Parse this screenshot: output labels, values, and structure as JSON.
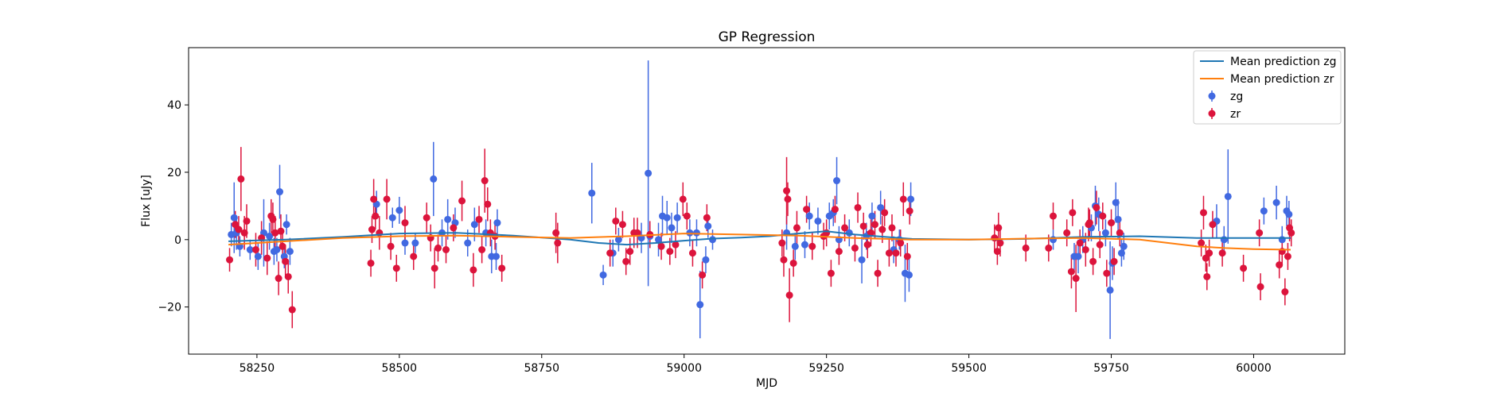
{
  "chart_data": {
    "type": "scatter",
    "title": "GP Regression",
    "xlabel": "MJD",
    "ylabel": "Flux [uJy]",
    "xlim": [
      58130,
      60160
    ],
    "ylim": [
      -34,
      57
    ],
    "xticks": [
      58250,
      58500,
      58750,
      59000,
      59250,
      59500,
      59750,
      60000
    ],
    "yticks": [
      -20,
      0,
      20,
      40
    ],
    "grid": false,
    "legend_position": "top-right",
    "legend": [
      "Mean prediction zg",
      "Mean prediction zr",
      "zg",
      "zr"
    ],
    "series": [
      {
        "name": "zg",
        "kind": "errorbar",
        "color": "#4169e1",
        "points": [
          [
            58205,
            1.5,
            3.5
          ],
          [
            58210,
            6.5,
            10.5
          ],
          [
            58214,
            2.0,
            5.0
          ],
          [
            58220,
            -2.0,
            3.0
          ],
          [
            58238,
            -3.0,
            3.0
          ],
          [
            58252,
            -5.0,
            4.0
          ],
          [
            58262,
            2.0,
            10.0
          ],
          [
            58272,
            1.0,
            4.0
          ],
          [
            58280,
            -3.5,
            4.0
          ],
          [
            58285,
            -3.0,
            3.5
          ],
          [
            58290,
            14.2,
            8.0
          ],
          [
            58298,
            -5.0,
            3.5
          ],
          [
            58302,
            4.5,
            3.0
          ],
          [
            58308,
            -3.5,
            4.0
          ],
          [
            58460,
            10.5,
            4.0
          ],
          [
            58488,
            6.5,
            3.0
          ],
          [
            58500,
            8.7,
            4.0
          ],
          [
            58510,
            -1.0,
            3.5
          ],
          [
            58528,
            -1.0,
            3.0
          ],
          [
            58560,
            18.0,
            11.0
          ],
          [
            58575,
            2.0,
            4.0
          ],
          [
            58585,
            6.0,
            6.0
          ],
          [
            58598,
            5.0,
            4.5
          ],
          [
            58620,
            -1.0,
            4.0
          ],
          [
            58632,
            4.5,
            5.0
          ],
          [
            58652,
            2.0,
            4.0
          ],
          [
            58662,
            -5.0,
            5.0
          ],
          [
            58670,
            -5.0,
            4.0
          ],
          [
            58672,
            5.0,
            4.0
          ],
          [
            58838,
            13.8,
            9.0
          ],
          [
            58858,
            -10.5,
            3.0
          ],
          [
            58875,
            -4.0,
            4.0
          ],
          [
            58885,
            0.0,
            3.5
          ],
          [
            58925,
            0.5,
            4.5
          ],
          [
            58937,
            19.7,
            33.5
          ],
          [
            58940,
            1.0,
            3.5
          ],
          [
            58955,
            0.0,
            5.0
          ],
          [
            58962,
            7.0,
            6.0
          ],
          [
            58970,
            6.5,
            5.0
          ],
          [
            58978,
            3.5,
            4.5
          ],
          [
            58988,
            6.5,
            4.5
          ],
          [
            59010,
            2.0,
            4.0
          ],
          [
            59022,
            2.0,
            4.0
          ],
          [
            59028,
            -19.3,
            10.0
          ],
          [
            59038,
            -6.0,
            4.0
          ],
          [
            59042,
            4.0,
            3.5
          ],
          [
            59050,
            0.0,
            3.0
          ],
          [
            59180,
            2.0,
            5.0
          ],
          [
            59195,
            -2.0,
            4.0
          ],
          [
            59212,
            -1.5,
            4.0
          ],
          [
            59220,
            7.0,
            4.0
          ],
          [
            59235,
            5.5,
            4.0
          ],
          [
            59255,
            7.0,
            4.0
          ],
          [
            59262,
            8.0,
            4.0
          ],
          [
            59268,
            17.5,
            7.0
          ],
          [
            59272,
            0.0,
            4.0
          ],
          [
            59290,
            2.0,
            4.0
          ],
          [
            59312,
            -6.0,
            7.0
          ],
          [
            59320,
            1.0,
            4.0
          ],
          [
            59330,
            7.0,
            4.0
          ],
          [
            59345,
            9.5,
            5.0
          ],
          [
            59368,
            -3.0,
            4.0
          ],
          [
            59378,
            0.0,
            3.0
          ],
          [
            59388,
            -10.0,
            8.5
          ],
          [
            59395,
            -10.5,
            5.0
          ],
          [
            59398,
            12.0,
            5.0
          ],
          [
            59648,
            0.0,
            3.0
          ],
          [
            59685,
            -5.0,
            4.0
          ],
          [
            59692,
            -5.0,
            5.0
          ],
          [
            59700,
            0.0,
            4.0
          ],
          [
            59715,
            3.5,
            4.0
          ],
          [
            59722,
            10.0,
            6.0
          ],
          [
            59728,
            7.5,
            5.0
          ],
          [
            59740,
            2.0,
            4.0
          ],
          [
            59748,
            -15.0,
            14.5
          ],
          [
            59752,
            -7.0,
            5.0
          ],
          [
            59758,
            11.0,
            6.0
          ],
          [
            59762,
            6.0,
            6.0
          ],
          [
            59768,
            -4.0,
            4.0
          ],
          [
            59772,
            -2.0,
            4.0
          ],
          [
            59935,
            5.5,
            5.0
          ],
          [
            59948,
            0.0,
            4.0
          ],
          [
            59955,
            12.8,
            14.0
          ],
          [
            60018,
            8.5,
            4.0
          ],
          [
            60040,
            11.0,
            5.0
          ],
          [
            60050,
            0.0,
            4.0
          ],
          [
            60058,
            8.5,
            4.5
          ],
          [
            60062,
            7.5,
            4.0
          ]
        ]
      },
      {
        "name": "zr",
        "kind": "errorbar",
        "color": "#dc143c",
        "points": [
          [
            58202,
            -6.0,
            3.5
          ],
          [
            58212,
            4.5,
            4.0
          ],
          [
            58218,
            3.0,
            4.0
          ],
          [
            58222,
            18.0,
            9.5
          ],
          [
            58228,
            2.0,
            5.0
          ],
          [
            58232,
            5.5,
            5.0
          ],
          [
            58248,
            -3.0,
            5.0
          ],
          [
            58258,
            0.5,
            5.0
          ],
          [
            58268,
            -5.5,
            5.0
          ],
          [
            58275,
            7.0,
            5.0
          ],
          [
            58278,
            6.0,
            5.0
          ],
          [
            58282,
            2.0,
            5.0
          ],
          [
            58288,
            -11.5,
            5.0
          ],
          [
            58292,
            2.5,
            5.0
          ],
          [
            58295,
            -2.0,
            5.0
          ],
          [
            58300,
            -6.5,
            5.0
          ],
          [
            58305,
            -11.0,
            5.0
          ],
          [
            58312,
            -20.8,
            5.5
          ],
          [
            58450,
            -7.0,
            4.0
          ],
          [
            58452,
            3.0,
            4.0
          ],
          [
            58455,
            12.0,
            6.0
          ],
          [
            58458,
            7.0,
            4.0
          ],
          [
            58465,
            2.0,
            5.0
          ],
          [
            58478,
            12.0,
            6.0
          ],
          [
            58485,
            -2.0,
            4.0
          ],
          [
            58495,
            -8.5,
            4.0
          ],
          [
            58510,
            5.0,
            5.0
          ],
          [
            58525,
            -5.0,
            4.0
          ],
          [
            58548,
            6.5,
            4.5
          ],
          [
            58555,
            0.5,
            4.0
          ],
          [
            58562,
            -8.5,
            6.0
          ],
          [
            58568,
            -2.5,
            4.0
          ],
          [
            58582,
            -3.0,
            4.0
          ],
          [
            58595,
            3.5,
            4.0
          ],
          [
            58610,
            11.5,
            6.0
          ],
          [
            58630,
            -9.0,
            5.0
          ],
          [
            58640,
            6.0,
            4.0
          ],
          [
            58645,
            -3.0,
            4.0
          ],
          [
            58650,
            17.5,
            9.5
          ],
          [
            58655,
            10.5,
            5.0
          ],
          [
            58660,
            2.0,
            4.0
          ],
          [
            58668,
            1.0,
            4.0
          ],
          [
            58680,
            -8.5,
            4.0
          ],
          [
            58775,
            2.0,
            6.0
          ],
          [
            58778,
            -1.0,
            6.0
          ],
          [
            58870,
            -4.0,
            4.0
          ],
          [
            58880,
            5.5,
            4.0
          ],
          [
            58892,
            4.5,
            4.0
          ],
          [
            58898,
            -6.5,
            4.0
          ],
          [
            58905,
            -3.5,
            4.0
          ],
          [
            58912,
            2.0,
            4.5
          ],
          [
            58918,
            2.0,
            4.5
          ],
          [
            58940,
            1.5,
            4.0
          ],
          [
            58960,
            -2.0,
            4.0
          ],
          [
            58975,
            -3.5,
            4.0
          ],
          [
            58985,
            -1.5,
            4.0
          ],
          [
            58998,
            12.0,
            5.0
          ],
          [
            59005,
            7.0,
            4.0
          ],
          [
            59015,
            -4.0,
            4.0
          ],
          [
            59032,
            -10.5,
            4.0
          ],
          [
            59040,
            6.5,
            4.0
          ],
          [
            59172,
            -1.0,
            4.0
          ],
          [
            59175,
            -6.0,
            5.0
          ],
          [
            59180,
            14.5,
            10.0
          ],
          [
            59182,
            12.0,
            5.0
          ],
          [
            59185,
            -16.5,
            8.0
          ],
          [
            59192,
            -7.0,
            4.0
          ],
          [
            59198,
            3.5,
            5.0
          ],
          [
            59215,
            9.0,
            4.0
          ],
          [
            59225,
            -2.0,
            4.0
          ],
          [
            59245,
            1.0,
            4.0
          ],
          [
            59250,
            2.0,
            4.0
          ],
          [
            59258,
            -10.0,
            4.0
          ],
          [
            59265,
            9.0,
            4.0
          ],
          [
            59272,
            -3.5,
            4.0
          ],
          [
            59282,
            3.5,
            4.0
          ],
          [
            59300,
            -2.5,
            4.0
          ],
          [
            59305,
            9.5,
            4.5
          ],
          [
            59315,
            4.0,
            4.0
          ],
          [
            59322,
            -1.5,
            4.0
          ],
          [
            59328,
            2.0,
            4.0
          ],
          [
            59335,
            4.5,
            4.0
          ],
          [
            59340,
            -10.0,
            4.0
          ],
          [
            59348,
            3.0,
            4.0
          ],
          [
            59352,
            8.0,
            4.0
          ],
          [
            59360,
            -4.0,
            4.0
          ],
          [
            59365,
            3.5,
            4.0
          ],
          [
            59372,
            -4.0,
            4.0
          ],
          [
            59380,
            -1.0,
            4.0
          ],
          [
            59385,
            12.0,
            5.0
          ],
          [
            59392,
            -5.0,
            4.0
          ],
          [
            59396,
            8.5,
            4.0
          ],
          [
            59545,
            0.5,
            4.0
          ],
          [
            59550,
            -3.5,
            4.0
          ],
          [
            59552,
            3.5,
            4.5
          ],
          [
            59555,
            -1.0,
            4.0
          ],
          [
            59600,
            -2.5,
            4.0
          ],
          [
            59640,
            -2.5,
            4.0
          ],
          [
            59648,
            7.0,
            4.0
          ],
          [
            59672,
            2.0,
            4.0
          ],
          [
            59680,
            -9.5,
            5.0
          ],
          [
            59682,
            8.0,
            4.0
          ],
          [
            59688,
            -11.5,
            10.0
          ],
          [
            59695,
            -1.0,
            4.0
          ],
          [
            59705,
            -3.0,
            5.0
          ],
          [
            59710,
            4.5,
            5.0
          ],
          [
            59712,
            5.0,
            4.0
          ],
          [
            59718,
            -6.5,
            4.0
          ],
          [
            59724,
            9.5,
            5.0
          ],
          [
            59730,
            -1.5,
            4.0
          ],
          [
            59735,
            7.0,
            4.0
          ],
          [
            59742,
            -10.0,
            4.0
          ],
          [
            59750,
            5.0,
            4.0
          ],
          [
            59755,
            -6.5,
            4.0
          ],
          [
            59765,
            2.0,
            4.0
          ],
          [
            59908,
            -1.0,
            4.0
          ],
          [
            59912,
            8.0,
            5.0
          ],
          [
            59916,
            -5.5,
            4.0
          ],
          [
            59918,
            -11.0,
            4.0
          ],
          [
            59922,
            -4.0,
            4.0
          ],
          [
            59928,
            4.5,
            4.0
          ],
          [
            59945,
            -4.0,
            4.0
          ],
          [
            59982,
            -8.5,
            4.0
          ],
          [
            60010,
            2.0,
            4.0
          ],
          [
            60012,
            -14.0,
            4.0
          ],
          [
            60045,
            -7.5,
            4.0
          ],
          [
            60050,
            -3.5,
            4.0
          ],
          [
            60055,
            -15.5,
            4.0
          ],
          [
            60060,
            -5.0,
            4.0
          ],
          [
            60063,
            3.5,
            4.0
          ],
          [
            60066,
            2.0,
            4.0
          ]
        ]
      },
      {
        "name": "Mean prediction zg",
        "kind": "line",
        "color": "#1f77b4",
        "x": [
          58200,
          58300,
          58400,
          58500,
          58600,
          58700,
          58800,
          58850,
          58900,
          58950,
          59000,
          59050,
          59100,
          59150,
          59200,
          59250,
          59300,
          59400,
          59500,
          59600,
          59700,
          59800,
          59900,
          60000,
          60065
        ],
        "y": [
          -0.5,
          0.0,
          0.8,
          1.8,
          2.0,
          1.2,
          0.0,
          -1.0,
          -1.5,
          -1.0,
          -0.3,
          0.3,
          0.6,
          1.0,
          1.8,
          2.5,
          1.5,
          0.2,
          0.0,
          0.2,
          0.8,
          1.0,
          0.5,
          0.5,
          0.5
        ]
      },
      {
        "name": "Mean prediction zr",
        "kind": "line",
        "color": "#ff7f0e",
        "x": [
          58200,
          58300,
          58400,
          58500,
          58600,
          58700,
          58800,
          58900,
          59000,
          59100,
          59200,
          59300,
          59400,
          59500,
          59600,
          59700,
          59800,
          59900,
          59950,
          60000,
          60065
        ],
        "y": [
          -1.5,
          -0.5,
          0.5,
          1.0,
          1.2,
          0.8,
          0.5,
          1.0,
          1.8,
          1.5,
          1.2,
          0.5,
          0.0,
          0.0,
          0.3,
          0.5,
          0.0,
          -2.0,
          -2.5,
          -2.8,
          -3.0
        ]
      }
    ]
  }
}
